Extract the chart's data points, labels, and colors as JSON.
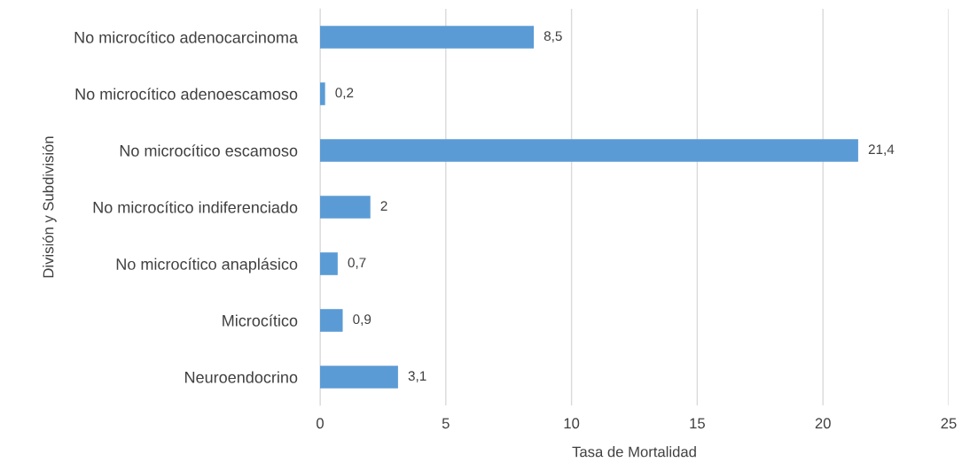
{
  "chart_data": {
    "type": "bar",
    "orientation": "horizontal",
    "xlabel": "Tasa de Mortalidad",
    "ylabel": "División y Subdivisión",
    "categories": [
      "No microcítico adenocarcinoma",
      "No microcítico adenoescamoso",
      "No microcítico escamoso",
      "No microcítico indiferenciado",
      "No microcítico anaplásico",
      "Microcítico",
      "Neuroendocrino"
    ],
    "values": [
      8.5,
      0.2,
      21.4,
      2,
      0.7,
      0.9,
      3.1
    ],
    "value_labels": [
      "8,5",
      "0,2",
      "21,4",
      "2",
      "0,7",
      "0,9",
      "3,1"
    ],
    "color": "#5b9bd5",
    "xlim": [
      0,
      25
    ],
    "xticks": [
      0,
      5,
      10,
      15,
      20,
      25
    ],
    "grid": "x",
    "legend": false
  }
}
